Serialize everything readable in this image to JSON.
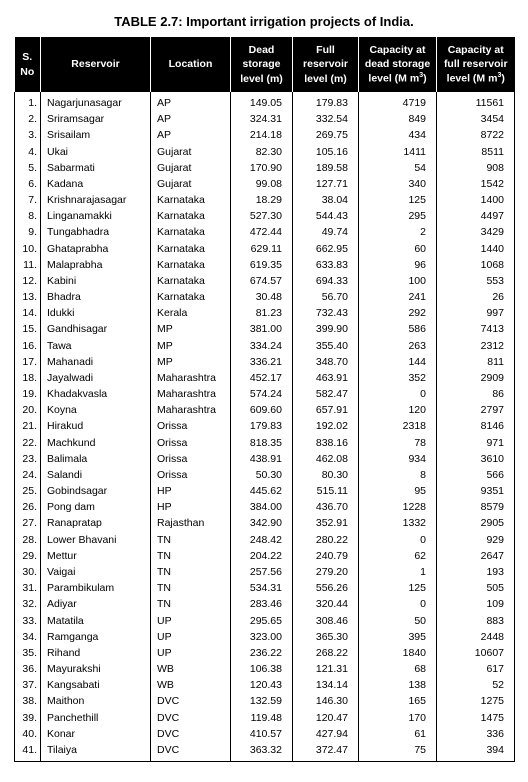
{
  "title": "TABLE 2.7: Important irrigation projects of India.",
  "columns": {
    "sno": "S. No",
    "reservoir": "Reservoir",
    "location": "Location",
    "dead_storage_level": "Dead storage level (m)",
    "full_reservoir_level": "Full reservoir level (m)",
    "cap_dead": "Capacity at dead storage level (M m",
    "cap_full": "Capacity at full reservoir level (M m"
  },
  "unit_sup": "3",
  "unit_close": ")",
  "rows": [
    {
      "n": "1.",
      "res": "Nagarjunasagar",
      "loc": "AP",
      "dsl": "149.05",
      "frl": "179.83",
      "cds": "4719",
      "cfr": "11561"
    },
    {
      "n": "2.",
      "res": "Sriramsagar",
      "loc": "AP",
      "dsl": "324.31",
      "frl": "332.54",
      "cds": "849",
      "cfr": "3454"
    },
    {
      "n": "3.",
      "res": "Srisailam",
      "loc": "AP",
      "dsl": "214.18",
      "frl": "269.75",
      "cds": "434",
      "cfr": "8722"
    },
    {
      "n": "4.",
      "res": "Ukai",
      "loc": "Gujarat",
      "dsl": "82.30",
      "frl": "105.16",
      "cds": "1411",
      "cfr": "8511"
    },
    {
      "n": "5.",
      "res": "Sabarmati",
      "loc": "Gujarat",
      "dsl": "170.90",
      "frl": "189.58",
      "cds": "54",
      "cfr": "908"
    },
    {
      "n": "6.",
      "res": "Kadana",
      "loc": "Gujarat",
      "dsl": "99.08",
      "frl": "127.71",
      "cds": "340",
      "cfr": "1542"
    },
    {
      "n": "7.",
      "res": "Krishnarajasagar",
      "loc": "Karnataka",
      "dsl": "18.29",
      "frl": "38.04",
      "cds": "125",
      "cfr": "1400"
    },
    {
      "n": "8.",
      "res": "Linganamakki",
      "loc": "Karnataka",
      "dsl": "527.30",
      "frl": "544.43",
      "cds": "295",
      "cfr": "4497"
    },
    {
      "n": "9.",
      "res": "Tungabhadra",
      "loc": "Karnataka",
      "dsl": "472.44",
      "frl": "49.74",
      "cds": "2",
      "cfr": "3429"
    },
    {
      "n": "10.",
      "res": "Ghataprabha",
      "loc": "Karnataka",
      "dsl": "629.11",
      "frl": "662.95",
      "cds": "60",
      "cfr": "1440"
    },
    {
      "n": "11.",
      "res": "Malaprabha",
      "loc": "Karnataka",
      "dsl": "619.35",
      "frl": "633.83",
      "cds": "96",
      "cfr": "1068"
    },
    {
      "n": "12.",
      "res": "Kabini",
      "loc": "Karnataka",
      "dsl": "674.57",
      "frl": "694.33",
      "cds": "100",
      "cfr": "553"
    },
    {
      "n": "13.",
      "res": "Bhadra",
      "loc": "Karnataka",
      "dsl": "30.48",
      "frl": "56.70",
      "cds": "241",
      "cfr": "26"
    },
    {
      "n": "14.",
      "res": "Idukki",
      "loc": "Kerala",
      "dsl": "81.23",
      "frl": "732.43",
      "cds": "292",
      "cfr": "997"
    },
    {
      "n": "15.",
      "res": "Gandhisagar",
      "loc": "MP",
      "dsl": "381.00",
      "frl": "399.90",
      "cds": "586",
      "cfr": "7413"
    },
    {
      "n": "16.",
      "res": "Tawa",
      "loc": "MP",
      "dsl": "334.24",
      "frl": "355.40",
      "cds": "263",
      "cfr": "2312"
    },
    {
      "n": "17.",
      "res": "Mahanadi",
      "loc": "MP",
      "dsl": "336.21",
      "frl": "348.70",
      "cds": "144",
      "cfr": "811"
    },
    {
      "n": "18.",
      "res": "Jayalwadi",
      "loc": "Maharashtra",
      "dsl": "452.17",
      "frl": "463.91",
      "cds": "352",
      "cfr": "2909"
    },
    {
      "n": "19.",
      "res": "Khadakvasla",
      "loc": "Maharashtra",
      "dsl": "574.24",
      "frl": "582.47",
      "cds": "0",
      "cfr": "86"
    },
    {
      "n": "20.",
      "res": "Koyna",
      "loc": "Maharashtra",
      "dsl": "609.60",
      "frl": "657.91",
      "cds": "120",
      "cfr": "2797"
    },
    {
      "n": "21.",
      "res": "Hirakud",
      "loc": "Orissa",
      "dsl": "179.83",
      "frl": "192.02",
      "cds": "2318",
      "cfr": "8146"
    },
    {
      "n": "22.",
      "res": "Machkund",
      "loc": "Orissa",
      "dsl": "818.35",
      "frl": "838.16",
      "cds": "78",
      "cfr": "971"
    },
    {
      "n": "23.",
      "res": "Balimala",
      "loc": "Orissa",
      "dsl": "438.91",
      "frl": "462.08",
      "cds": "934",
      "cfr": "3610"
    },
    {
      "n": "24.",
      "res": "Salandi",
      "loc": "Orissa",
      "dsl": "50.30",
      "frl": "80.30",
      "cds": "8",
      "cfr": "566"
    },
    {
      "n": "25.",
      "res": "Gobindsagar",
      "loc": "HP",
      "dsl": "445.62",
      "frl": "515.11",
      "cds": "95",
      "cfr": "9351"
    },
    {
      "n": "26.",
      "res": "Pong dam",
      "loc": "HP",
      "dsl": "384.00",
      "frl": "436.70",
      "cds": "1228",
      "cfr": "8579"
    },
    {
      "n": "27.",
      "res": "Ranapratap",
      "loc": "Rajasthan",
      "dsl": "342.90",
      "frl": "352.91",
      "cds": "1332",
      "cfr": "2905"
    },
    {
      "n": "28.",
      "res": "Lower Bhavani",
      "loc": "TN",
      "dsl": "248.42",
      "frl": "280.22",
      "cds": "0",
      "cfr": "929"
    },
    {
      "n": "29.",
      "res": "Mettur",
      "loc": "TN",
      "dsl": "204.22",
      "frl": "240.79",
      "cds": "62",
      "cfr": "2647"
    },
    {
      "n": "30.",
      "res": "Vaigai",
      "loc": "TN",
      "dsl": "257.56",
      "frl": "279.20",
      "cds": "1",
      "cfr": "193"
    },
    {
      "n": "31.",
      "res": "Parambikulam",
      "loc": "TN",
      "dsl": "534.31",
      "frl": "556.26",
      "cds": "125",
      "cfr": "505"
    },
    {
      "n": "32.",
      "res": "Adiyar",
      "loc": "TN",
      "dsl": "283.46",
      "frl": "320.44",
      "cds": "0",
      "cfr": "109"
    },
    {
      "n": "33.",
      "res": "Matatila",
      "loc": "UP",
      "dsl": "295.65",
      "frl": "308.46",
      "cds": "50",
      "cfr": "883"
    },
    {
      "n": "34.",
      "res": "Ramganga",
      "loc": "UP",
      "dsl": "323.00",
      "frl": "365.30",
      "cds": "395",
      "cfr": "2448"
    },
    {
      "n": "35.",
      "res": "Rihand",
      "loc": "UP",
      "dsl": "236.22",
      "frl": "268.22",
      "cds": "1840",
      "cfr": "10607"
    },
    {
      "n": "36.",
      "res": "Mayurakshi",
      "loc": "WB",
      "dsl": "106.38",
      "frl": "121.31",
      "cds": "68",
      "cfr": "617"
    },
    {
      "n": "37.",
      "res": "Kangsabati",
      "loc": "WB",
      "dsl": "120.43",
      "frl": "134.14",
      "cds": "138",
      "cfr": "52"
    },
    {
      "n": "38.",
      "res": "Maithon",
      "loc": "DVC",
      "dsl": "132.59",
      "frl": "146.30",
      "cds": "165",
      "cfr": "1275"
    },
    {
      "n": "39.",
      "res": "Panchethill",
      "loc": "DVC",
      "dsl": "119.48",
      "frl": "120.47",
      "cds": "170",
      "cfr": "1475"
    },
    {
      "n": "40.",
      "res": "Konar",
      "loc": "DVC",
      "dsl": "410.57",
      "frl": "427.94",
      "cds": "61",
      "cfr": "336"
    },
    {
      "n": "41.",
      "res": "Tilaiya",
      "loc": "DVC",
      "dsl": "363.32",
      "frl": "372.47",
      "cds": "75",
      "cfr": "394"
    }
  ]
}
